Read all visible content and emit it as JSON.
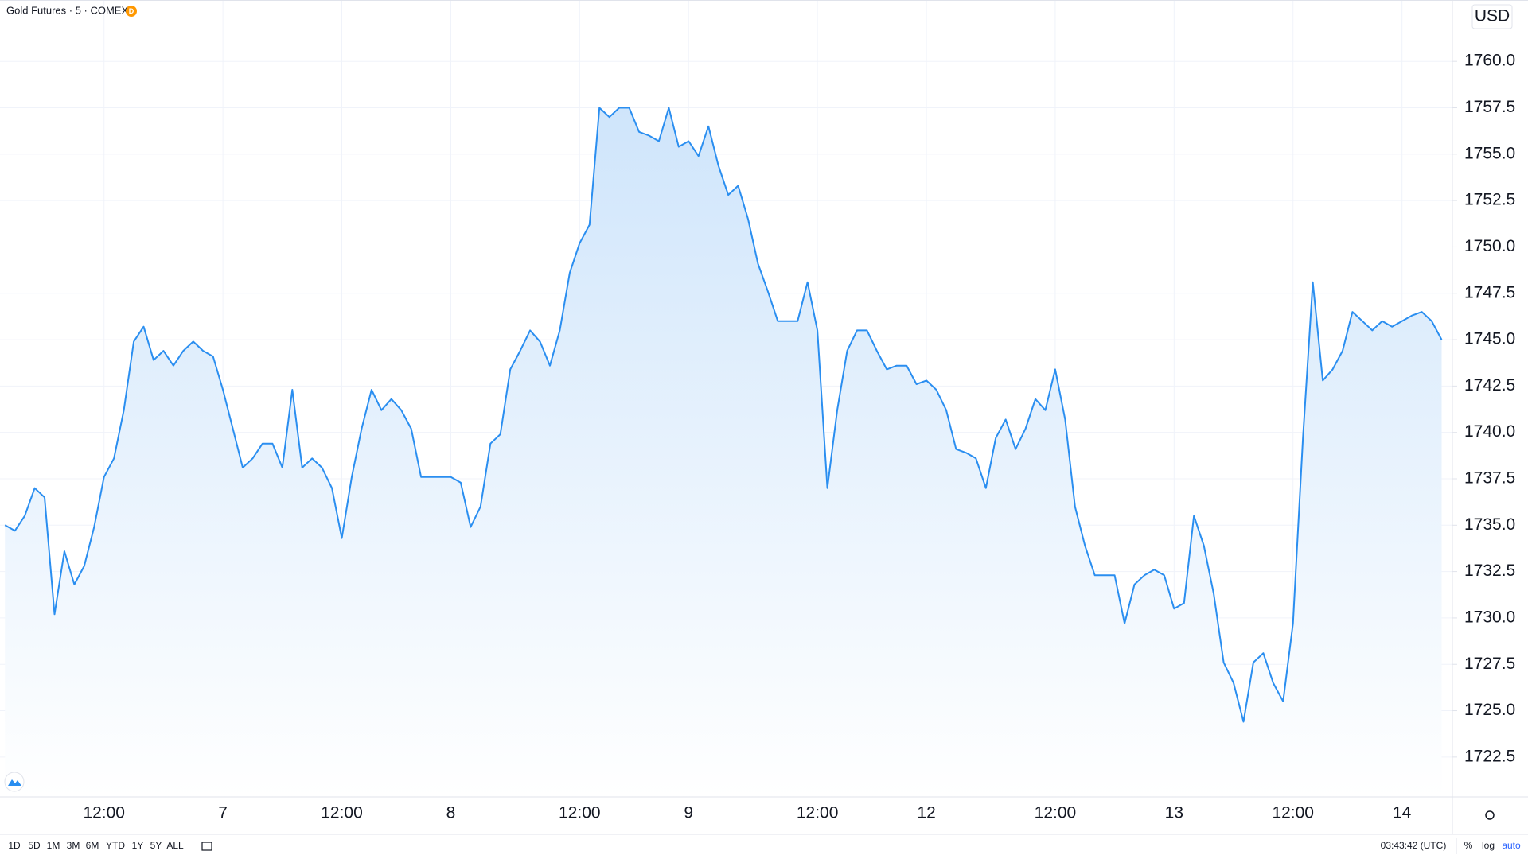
{
  "chart_data": {
    "type": "area",
    "title": "Gold Futures · 5 · COMEX",
    "badge": "D",
    "currency": "USD",
    "color": "#2a8ef0",
    "fill_color": "#cfe5fb",
    "grid": true,
    "categories": [
      null,
      null,
      null,
      null,
      null,
      null,
      null,
      null,
      null,
      null,
      "12:00",
      null,
      null,
      null,
      null,
      null,
      null,
      null,
      null,
      null,
      null,
      null,
      "7",
      null,
      null,
      null,
      null,
      null,
      null,
      null,
      null,
      null,
      null,
      null,
      "12:00",
      null,
      null,
      null,
      null,
      null,
      null,
      null,
      null,
      null,
      null,
      "8",
      null,
      null,
      null,
      null,
      null,
      null,
      null,
      null,
      null,
      null,
      null,
      null,
      "12:00",
      null,
      null,
      null,
      null,
      null,
      null,
      null,
      null,
      null,
      null,
      "9",
      null,
      null,
      null,
      null,
      null,
      null,
      null,
      null,
      null,
      null,
      null,
      null,
      "12:00",
      null,
      null,
      null,
      null,
      null,
      null,
      null,
      null,
      null,
      null,
      "12",
      null,
      null,
      null,
      null,
      null,
      null,
      null,
      null,
      null,
      null,
      null,
      null,
      "12:00",
      null,
      null,
      null,
      null,
      null,
      null,
      null,
      null,
      null,
      null,
      null,
      "13",
      null,
      null,
      null,
      null,
      null,
      null,
      null,
      null,
      null,
      null,
      null,
      "12:00",
      null,
      null,
      null,
      null,
      null,
      null,
      null,
      null,
      null,
      null,
      "14",
      null,
      null,
      null,
      null
    ],
    "values": [
      1735.0,
      1734.7,
      1735.5,
      1737.0,
      1736.5,
      1730.2,
      1733.6,
      1731.8,
      1732.8,
      1734.9,
      1737.6,
      1738.6,
      1741.2,
      1744.9,
      1745.7,
      1743.9,
      1744.4,
      1743.6,
      1744.4,
      1744.9,
      1744.4,
      1744.1,
      1742.3,
      1740.2,
      1738.1,
      1738.6,
      1739.4,
      1739.4,
      1738.1,
      1742.3,
      1738.1,
      1738.6,
      1738.1,
      1737.0,
      1734.3,
      1737.6,
      1740.2,
      1742.3,
      1741.2,
      1741.8,
      1741.2,
      1740.2,
      1737.6,
      1737.6,
      1737.6,
      1737.6,
      1737.3,
      1734.9,
      1736.0,
      1739.4,
      1739.9,
      1743.4,
      1744.4,
      1745.5,
      1744.9,
      1743.6,
      1745.5,
      1748.6,
      1750.2,
      1751.2,
      1757.5,
      1757.0,
      1757.5,
      1757.5,
      1756.2,
      1756.0,
      1755.7,
      1757.5,
      1755.4,
      1755.7,
      1754.9,
      1756.5,
      1754.4,
      1752.8,
      1753.3,
      1751.5,
      1749.1,
      1747.6,
      1746.0,
      1746.0,
      1746.0,
      1748.1,
      1745.5,
      1737.0,
      1741.2,
      1744.4,
      1745.5,
      1745.5,
      1744.4,
      1743.4,
      1743.6,
      1743.6,
      1742.6,
      1742.8,
      1742.3,
      1741.2,
      1739.1,
      1738.9,
      1738.6,
      1737.0,
      1739.7,
      1740.7,
      1739.1,
      1740.2,
      1741.8,
      1741.2,
      1743.4,
      1740.7,
      1736.0,
      1733.9,
      1732.3,
      1732.3,
      1732.3,
      1729.7,
      1731.8,
      1732.3,
      1732.6,
      1732.3,
      1730.5,
      1730.8,
      1735.5,
      1733.9,
      1731.3,
      1727.6,
      1726.5,
      1724.4,
      1727.6,
      1728.1,
      1726.5,
      1725.5,
      1729.7,
      1739.7,
      1748.1,
      1742.8,
      1743.4,
      1744.4,
      1746.5,
      1746.0,
      1745.5,
      1746.0,
      1745.7,
      1746.0,
      1746.3,
      1746.5,
      1746.0,
      1745.0
    ],
    "ylim": [
      1720.35,
      1763.31
    ],
    "yticks": [
      1722.5,
      {
        "value": 1725,
        "label": "1725.0"
      },
      1727.5,
      {
        "value": 1730,
        "label": "1730.0"
      },
      1732.5,
      {
        "value": 1735,
        "label": "1735.0"
      },
      1737.5,
      {
        "value": 1740,
        "label": "1740.0"
      },
      1742.5,
      {
        "value": 1745,
        "label": "1745.0"
      },
      1747.5,
      {
        "value": 1750,
        "label": "1750.0"
      },
      1752.5,
      {
        "value": 1755,
        "label": "1755.0"
      },
      1757.5,
      {
        "value": 1760,
        "label": "1760.0"
      }
    ]
  },
  "ui": {
    "ranges": [
      "1D",
      "5D",
      "1M",
      "3M",
      "6M",
      "YTD",
      "1Y",
      "5Y",
      "ALL"
    ],
    "clock": "03:43:42 (UTC)",
    "percent": "%",
    "log": "log",
    "auto": "auto"
  }
}
